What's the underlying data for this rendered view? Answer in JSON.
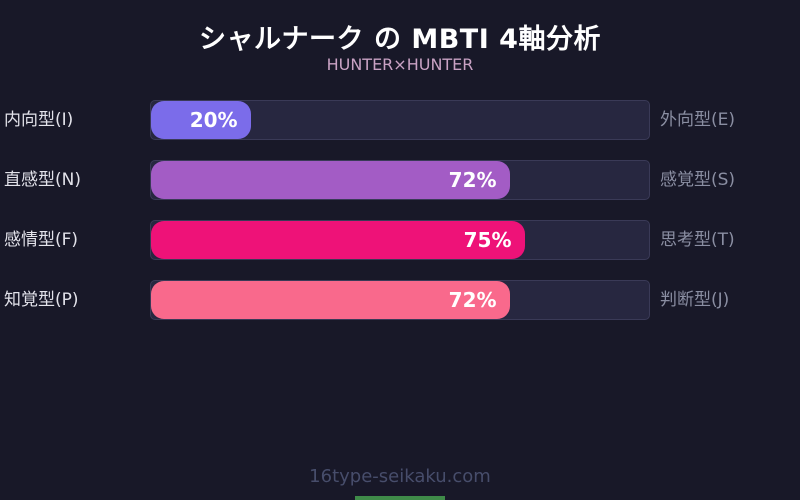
{
  "header": {
    "title": "シャルナーク の MBTI 4軸分析",
    "subtitle": "HUNTER×HUNTER"
  },
  "chart_data": {
    "type": "bar",
    "orientation": "horizontal",
    "title": "シャルナーク の MBTI 4軸分析",
    "subtitle": "HUNTER×HUNTER",
    "xlim": [
      0,
      100
    ],
    "grid": false,
    "legend": false,
    "axes": [
      {
        "left_label": "内向型(I)",
        "right_label": "外向型(E)",
        "percent": 20,
        "value_label": "20%",
        "color": "#7b6cea"
      },
      {
        "left_label": "直感型(N)",
        "right_label": "感覚型(S)",
        "percent": 72,
        "value_label": "72%",
        "color": "#a35cc5"
      },
      {
        "left_label": "感情型(F)",
        "right_label": "思考型(T)",
        "percent": 75,
        "value_label": "75%",
        "color": "#ee1278"
      },
      {
        "left_label": "知覚型(P)",
        "right_label": "判断型(J)",
        "percent": 72,
        "value_label": "72%",
        "color": "#f9698c"
      }
    ]
  },
  "footer": {
    "watermark": "16type-seikaku.com"
  },
  "colors": {
    "background": "#181828",
    "track": "#272740",
    "track_border": "#3a3a57",
    "title_text": "#ffffff",
    "subtitle_text": "#c9a2c4",
    "left_label_text": "#e2e2ea",
    "right_label_text": "#8a8ea2",
    "footer_text": "#474d6b",
    "accent_bar": "#3f8b49"
  }
}
